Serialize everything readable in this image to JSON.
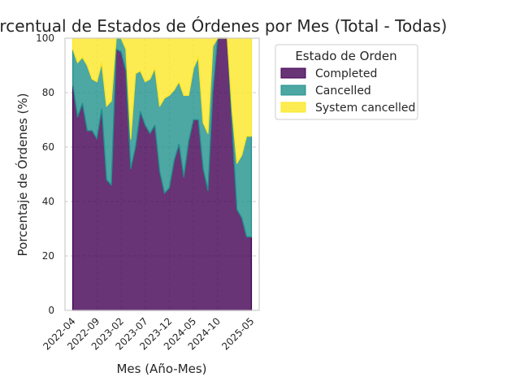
{
  "chart_data": {
    "type": "area",
    "title": "Distribución Porcentual de Estados de Órdenes por Mes (Total - Todas)",
    "xlabel": "Mes (Año-Mes)",
    "ylabel": "Porcentaje de Órdenes (%)",
    "ylim": [
      0,
      100
    ],
    "yticks": [
      0,
      20,
      40,
      60,
      80,
      100
    ],
    "xtick_labels": [
      "2022-04",
      "2022-09",
      "2023-02",
      "2023-07",
      "2023-12",
      "2024-05",
      "2024-10",
      "2025-05"
    ],
    "x_months": [
      "2022-04",
      "2022-05",
      "2022-06",
      "2022-07",
      "2022-08",
      "2022-09",
      "2022-10",
      "2022-11",
      "2022-12",
      "2023-01",
      "2023-02",
      "2023-03",
      "2023-04",
      "2023-05",
      "2023-06",
      "2023-07",
      "2023-08",
      "2023-09",
      "2023-10",
      "2023-11",
      "2023-12",
      "2024-01",
      "2024-02",
      "2024-03",
      "2024-04",
      "2024-05",
      "2024-06",
      "2024-07",
      "2024-08",
      "2024-09",
      "2024-10",
      "2024-11",
      "2024-12",
      "2025-01",
      "2025-02",
      "2025-03",
      "2025-04",
      "2025-05"
    ],
    "stacked": true,
    "grid": true,
    "legend": {
      "title": "Estado de Orden",
      "placement": "outside-right-top"
    },
    "series": [
      {
        "name": "Completed",
        "color": "#440154",
        "values": [
          83,
          71,
          76,
          66,
          66,
          63,
          74,
          48,
          46,
          96,
          95,
          88,
          52,
          60,
          73,
          68,
          65,
          68,
          51,
          43,
          45,
          55,
          61,
          49,
          62,
          70,
          70,
          52,
          44,
          80,
          100,
          100,
          100,
          67,
          37,
          34,
          27,
          27
        ]
      },
      {
        "name": "Cancelled",
        "color": "#21918c",
        "values": [
          13,
          20,
          17,
          24,
          19,
          21,
          17,
          27,
          31,
          4,
          5,
          8,
          11,
          27,
          15,
          16,
          20,
          21,
          24,
          35,
          34,
          26,
          23,
          30,
          17,
          19,
          23,
          17,
          21,
          17,
          0,
          0,
          0,
          6,
          17,
          23,
          37,
          37
        ]
      },
      {
        "name": "System cancelled",
        "color": "#fde725",
        "values": [
          4,
          9,
          7,
          10,
          15,
          16,
          9,
          25,
          23,
          0,
          0,
          4,
          37,
          13,
          12,
          16,
          15,
          11,
          25,
          22,
          21,
          19,
          16,
          21,
          21,
          11,
          7,
          31,
          35,
          3,
          0,
          0,
          0,
          27,
          46,
          43,
          36,
          36
        ]
      }
    ]
  }
}
